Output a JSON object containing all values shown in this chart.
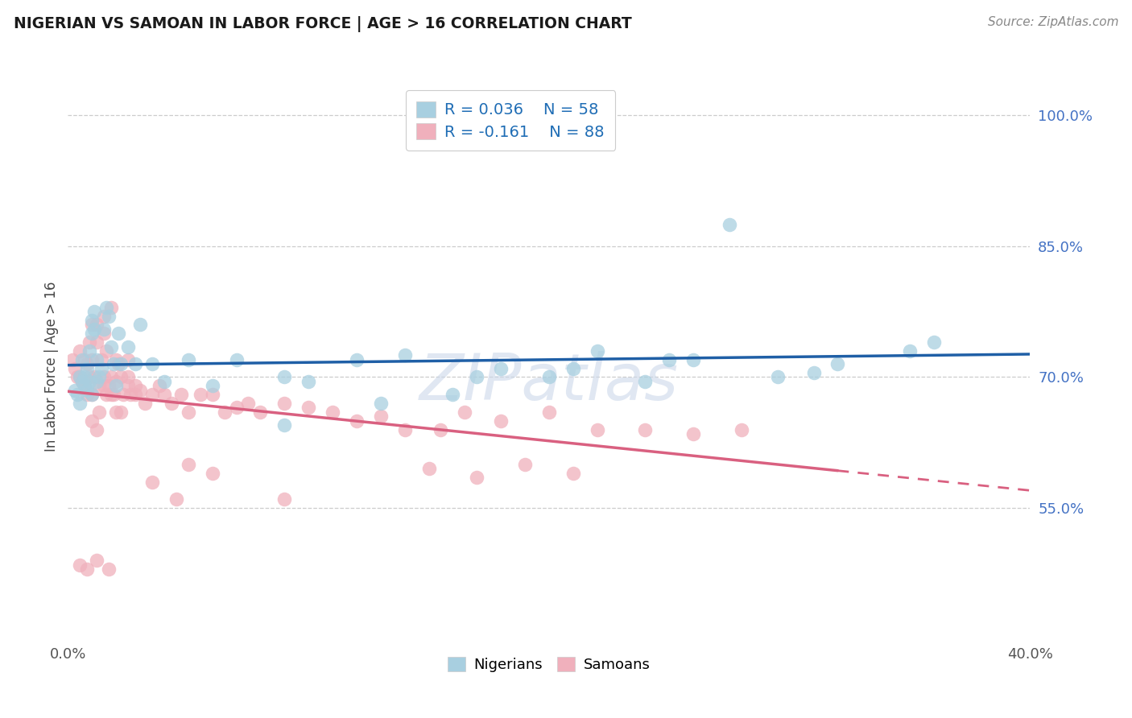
{
  "title": "NIGERIAN VS SAMOAN IN LABOR FORCE | AGE > 16 CORRELATION CHART",
  "source": "Source: ZipAtlas.com",
  "ylabel": "In Labor Force | Age > 16",
  "xlim": [
    0.0,
    0.4
  ],
  "ylim": [
    0.4,
    1.025
  ],
  "yticks": [
    0.55,
    0.7,
    0.85,
    1.0
  ],
  "ytick_labels": [
    "55.0%",
    "70.0%",
    "85.0%",
    "100.0%"
  ],
  "xticks": [
    0.0,
    0.4
  ],
  "xtick_labels": [
    "0.0%",
    "40.0%"
  ],
  "nigerian_color": "#a8cfe0",
  "samoan_color": "#f0b0bc",
  "nigerian_line_color": "#1f5fa6",
  "samoan_line_color": "#d96080",
  "legend_r_nigerian": "R = 0.036",
  "legend_n_nigerian": "N = 58",
  "legend_r_samoan": "R = -0.161",
  "legend_n_samoan": "N = 88",
  "nigerian_x": [
    0.003,
    0.004,
    0.005,
    0.005,
    0.006,
    0.006,
    0.007,
    0.007,
    0.008,
    0.008,
    0.009,
    0.009,
    0.01,
    0.01,
    0.01,
    0.011,
    0.011,
    0.012,
    0.012,
    0.013,
    0.014,
    0.015,
    0.016,
    0.017,
    0.018,
    0.019,
    0.02,
    0.021,
    0.022,
    0.025,
    0.028,
    0.03,
    0.035,
    0.04,
    0.05,
    0.06,
    0.07,
    0.09,
    0.1,
    0.12,
    0.14,
    0.16,
    0.18,
    0.2,
    0.22,
    0.24,
    0.26,
    0.295,
    0.32,
    0.36,
    0.09,
    0.13,
    0.17,
    0.21,
    0.25,
    0.275,
    0.31,
    0.35
  ],
  "nigerian_y": [
    0.685,
    0.68,
    0.7,
    0.67,
    0.695,
    0.72,
    0.7,
    0.69,
    0.71,
    0.685,
    0.73,
    0.695,
    0.75,
    0.765,
    0.68,
    0.775,
    0.755,
    0.72,
    0.695,
    0.7,
    0.71,
    0.755,
    0.78,
    0.77,
    0.735,
    0.715,
    0.69,
    0.75,
    0.715,
    0.735,
    0.715,
    0.76,
    0.715,
    0.695,
    0.72,
    0.69,
    0.72,
    0.7,
    0.695,
    0.72,
    0.725,
    0.68,
    0.71,
    0.7,
    0.73,
    0.695,
    0.72,
    0.7,
    0.715,
    0.74,
    0.645,
    0.67,
    0.7,
    0.71,
    0.72,
    0.875,
    0.705,
    0.73
  ],
  "samoan_x": [
    0.002,
    0.003,
    0.004,
    0.005,
    0.005,
    0.006,
    0.007,
    0.007,
    0.008,
    0.008,
    0.009,
    0.009,
    0.01,
    0.01,
    0.01,
    0.011,
    0.012,
    0.013,
    0.013,
    0.014,
    0.015,
    0.015,
    0.016,
    0.016,
    0.017,
    0.018,
    0.019,
    0.02,
    0.02,
    0.021,
    0.022,
    0.023,
    0.025,
    0.026,
    0.028,
    0.03,
    0.032,
    0.035,
    0.038,
    0.04,
    0.043,
    0.047,
    0.05,
    0.055,
    0.06,
    0.065,
    0.07,
    0.075,
    0.08,
    0.09,
    0.1,
    0.11,
    0.12,
    0.13,
    0.14,
    0.155,
    0.165,
    0.18,
    0.2,
    0.22,
    0.24,
    0.26,
    0.28,
    0.01,
    0.012,
    0.015,
    0.018,
    0.022,
    0.025,
    0.028,
    0.012,
    0.015,
    0.018,
    0.02,
    0.025,
    0.06,
    0.09,
    0.05,
    0.035,
    0.045,
    0.15,
    0.17,
    0.19,
    0.21,
    0.005,
    0.008,
    0.012,
    0.017
  ],
  "samoan_y": [
    0.72,
    0.71,
    0.7,
    0.73,
    0.7,
    0.695,
    0.72,
    0.69,
    0.715,
    0.68,
    0.74,
    0.7,
    0.76,
    0.72,
    0.68,
    0.7,
    0.74,
    0.69,
    0.66,
    0.72,
    0.75,
    0.7,
    0.73,
    0.68,
    0.69,
    0.7,
    0.68,
    0.695,
    0.66,
    0.715,
    0.7,
    0.68,
    0.7,
    0.68,
    0.69,
    0.685,
    0.67,
    0.68,
    0.69,
    0.68,
    0.67,
    0.68,
    0.66,
    0.68,
    0.68,
    0.66,
    0.665,
    0.67,
    0.66,
    0.67,
    0.665,
    0.66,
    0.65,
    0.655,
    0.64,
    0.64,
    0.66,
    0.65,
    0.66,
    0.64,
    0.64,
    0.635,
    0.64,
    0.65,
    0.64,
    0.69,
    0.68,
    0.66,
    0.69,
    0.68,
    0.76,
    0.77,
    0.78,
    0.72,
    0.72,
    0.59,
    0.56,
    0.6,
    0.58,
    0.56,
    0.595,
    0.585,
    0.6,
    0.59,
    0.485,
    0.48,
    0.49,
    0.48
  ]
}
